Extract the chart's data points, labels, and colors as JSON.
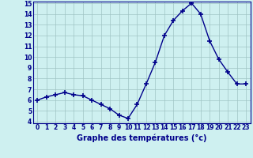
{
  "x": [
    0,
    1,
    2,
    3,
    4,
    5,
    6,
    7,
    8,
    9,
    10,
    11,
    12,
    13,
    14,
    15,
    16,
    17,
    18,
    19,
    20,
    21,
    22,
    23
  ],
  "y": [
    6.0,
    6.3,
    6.5,
    6.7,
    6.5,
    6.4,
    6.0,
    5.6,
    5.2,
    4.6,
    4.3,
    5.6,
    7.5,
    9.5,
    12.0,
    13.4,
    14.3,
    15.0,
    14.0,
    11.5,
    9.8,
    8.6,
    7.5,
    7.5
  ],
  "xlabel": "Graphe des températures (°c)",
  "ylim": [
    4,
    15
  ],
  "xlim": [
    -0.5,
    23.5
  ],
  "yticks": [
    4,
    5,
    6,
    7,
    8,
    9,
    10,
    11,
    12,
    13,
    14,
    15
  ],
  "xticks": [
    0,
    1,
    2,
    3,
    4,
    5,
    6,
    7,
    8,
    9,
    10,
    11,
    12,
    13,
    14,
    15,
    16,
    17,
    18,
    19,
    20,
    21,
    22,
    23
  ],
  "line_color": "#00008b",
  "marker_color": "#00008b",
  "bg_color": "#cef0f0",
  "grid_color": "#a0c4c4",
  "axis_color": "#00008b",
  "label_color": "#00008b",
  "tick_fontsize": 5.5,
  "xlabel_fontsize": 7.0
}
